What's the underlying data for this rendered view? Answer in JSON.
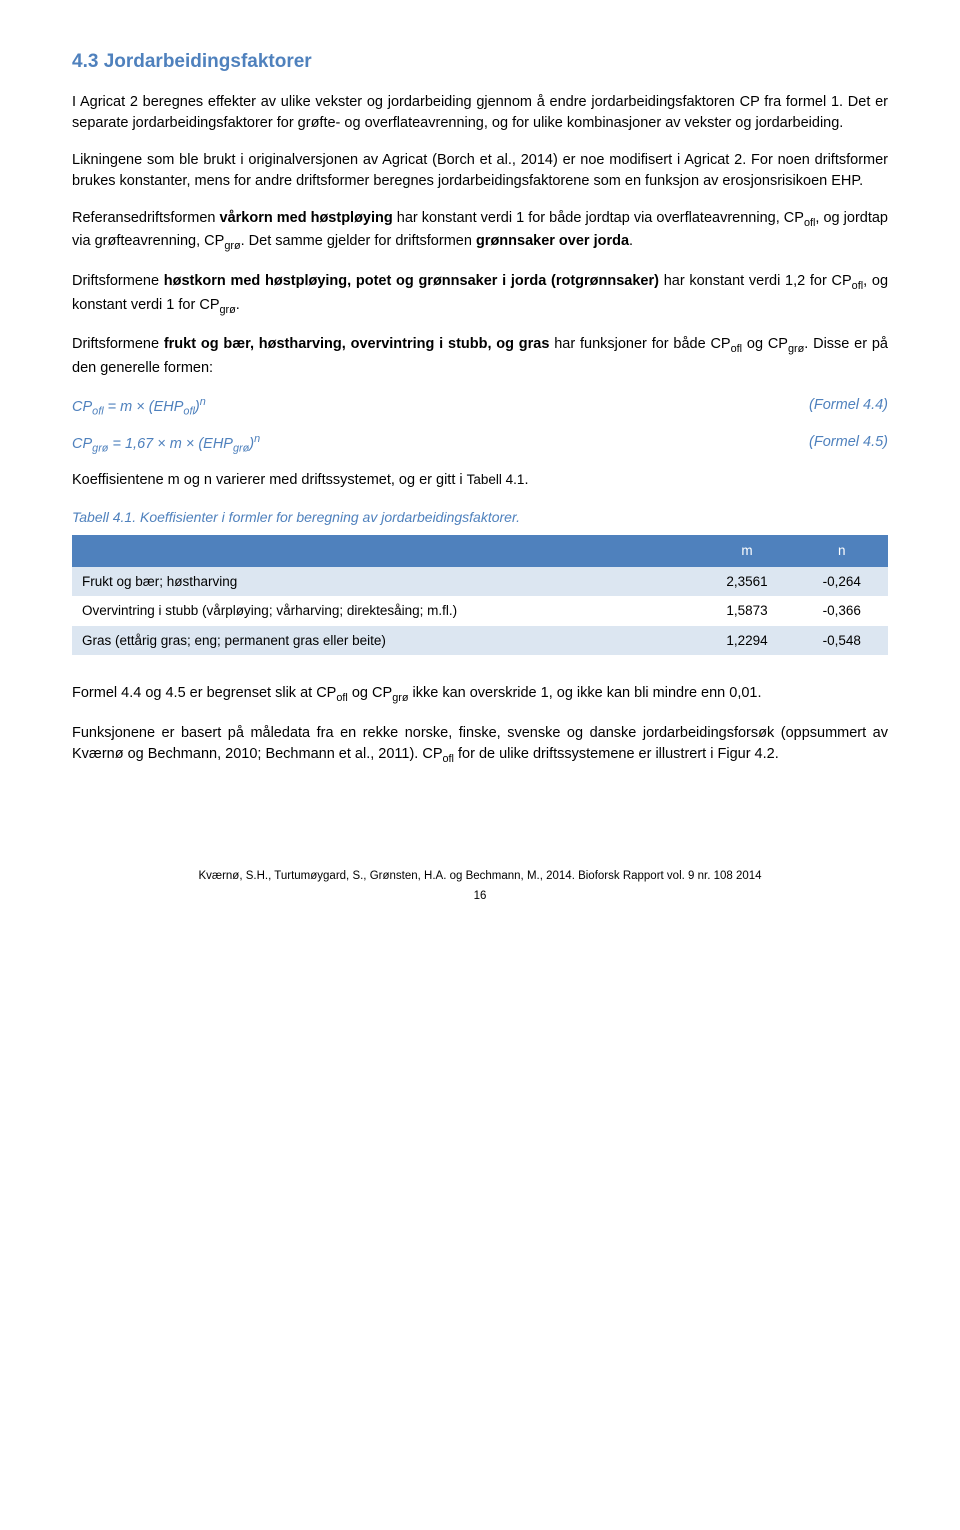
{
  "heading": "4.3 Jordarbeidingsfaktorer",
  "p1": "I Agricat 2 beregnes effekter av ulike vekster og jordarbeiding gjennom å endre jordarbeidingsfaktoren CP fra formel 1. Det er separate jordarbeidingsfaktorer for grøfte- og overflateavrenning, og for ulike kombinasjoner av vekster og jordarbeiding.",
  "p2": "Likningene som ble brukt i originalversjonen av Agricat (Borch et al., 2014) er noe modifisert i Agricat 2. For noen driftsformer brukes konstanter, mens for andre driftsformer beregnes jordarbeidingsfaktorene som en funksjon av erosjonsrisikoen EHP.",
  "p3_part1": "Referansedriftsformen ",
  "p3_bold1": "vårkorn med høstpløying",
  "p3_part2": " har konstant verdi 1 for både jordtap via overflateavrenning, CP",
  "p3_sub1": "ofl",
  "p3_part3": ", og jordtap via grøfteavrenning, CP",
  "p3_sub2": "grø",
  "p3_part4": ". Det samme gjelder for driftsformen ",
  "p3_bold2": "grønnsaker over jorda",
  "p3_part5": ".",
  "p4_part1": "Driftsformene ",
  "p4_bold1": "høstkorn med høstpløying, potet og grønnsaker i jorda (rotgrønnsaker)",
  "p4_part2": " har konstant verdi 1,2 for CP",
  "p4_sub1": "ofl",
  "p4_part3": ", og konstant verdi 1 for CP",
  "p4_sub2": "grø",
  "p4_part4": ".",
  "p5_part1": "Driftsformene ",
  "p5_bold1": "frukt og bær, høstharving, overvintring i stubb, og gras",
  "p5_part2": " har funksjoner for både CP",
  "p5_sub1": "ofl",
  "p5_part3": " og CP",
  "p5_sub2": "grø",
  "p5_part4": ". Disse er på den generelle formen:",
  "formula1_left_1": "CP",
  "formula1_left_sub1": "ofl",
  "formula1_left_2": " = m × (EHP",
  "formula1_left_sub2": "ofl",
  "formula1_left_3": ")",
  "formula1_left_sup": "n",
  "formula1_right": "(Formel 4.4)",
  "formula2_left_1": "CP",
  "formula2_left_sub1": "grø",
  "formula2_left_2": " = 1,67 × m × (EHP",
  "formula2_left_sub2": "grø",
  "formula2_left_3": ")",
  "formula2_left_sup": "n",
  "formula2_right": "(Formel 4.5)",
  "p6_part1": "Koeffisientene m og n varierer med driftssystemet, og er gitt i ",
  "p6_ref": "Tabell 4.1",
  "p6_part2": ".",
  "table_caption": "Tabell 4.1. Koeffisienter i formler for beregning av jordarbeidingsfaktorer.",
  "table": {
    "header": [
      "",
      "m",
      "n"
    ],
    "rows": [
      [
        "Frukt og bær; høstharving",
        "2,3561",
        "-0,264"
      ],
      [
        "Overvintring i stubb (vårpløying; vårharving; direktesåing; m.fl.)",
        "1,5873",
        "-0,366"
      ],
      [
        "Gras (ettårig gras; eng; permanent gras eller beite)",
        "1,2294",
        "-0,548"
      ]
    ]
  },
  "p7_part1": "Formel 4.4 og 4.5 er begrenset slik at CP",
  "p7_sub1": "ofl",
  "p7_part2": " og CP",
  "p7_sub2": "grø",
  "p7_part3": " ikke kan overskride 1, og ikke kan bli mindre enn 0,01.",
  "p8_part1": "Funksjonene er basert på måledata fra en rekke norske, finske, svenske og danske jordarbeidingsforsøk (oppsummert av Kværnø og Bechmann, 2010; Bechmann et al., 2011). CP",
  "p8_sub1": "ofl",
  "p8_part2": " for de ulike driftssystemene er illustrert i Figur 4.2.",
  "footer_citation": "Kværnø, S.H., Turtumøygard, S., Grønsten, H.A. og Bechmann, M., 2014. Bioforsk Rapport vol. 9 nr. 108 2014",
  "footer_page": "16"
}
